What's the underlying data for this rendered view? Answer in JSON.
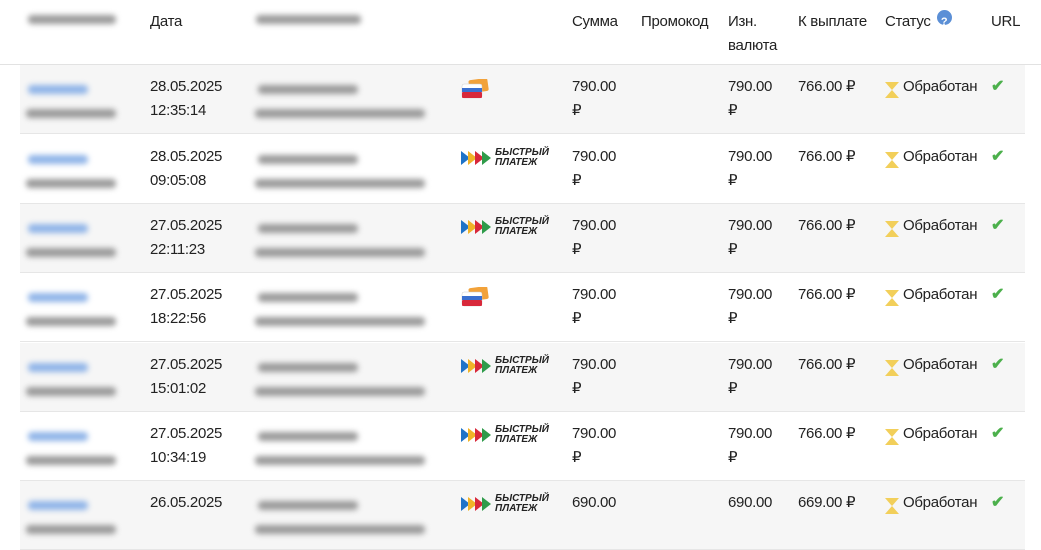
{
  "header": {
    "date": "Дата",
    "sum": "Сумма",
    "promo": "Промокод",
    "orig_currency": "Изн. валюта",
    "payout": "К выплате",
    "status": "Статус",
    "status_help": "?",
    "url": "URL"
  },
  "colors": {
    "row_alt": "#f6f6f6",
    "help": "#5b8fd6",
    "check": "#4cb04c",
    "hourglass": "#f2cf5a"
  },
  "rows": [
    {
      "date": "28.05.2025",
      "time": "12:35:14",
      "method": "card",
      "sum": "790.00",
      "sum_cur": "₽",
      "promo": "",
      "orig": "790.00",
      "orig_cur": "₽",
      "payout": "766.00 ₽",
      "status": "Обработан",
      "url": "check"
    },
    {
      "date": "28.05.2025",
      "time": "09:05:08",
      "method": "sbp",
      "sum": "790.00",
      "sum_cur": "₽",
      "promo": "",
      "orig": "790.00",
      "orig_cur": "₽",
      "payout": "766.00 ₽",
      "status": "Обработан",
      "url": "check"
    },
    {
      "date": "27.05.2025",
      "time": "22:11:23",
      "method": "sbp",
      "sum": "790.00",
      "sum_cur": "₽",
      "promo": "",
      "orig": "790.00",
      "orig_cur": "₽",
      "payout": "766.00 ₽",
      "status": "Обработан",
      "url": "check"
    },
    {
      "date": "27.05.2025",
      "time": "18:22:56",
      "method": "card",
      "sum": "790.00",
      "sum_cur": "₽",
      "promo": "",
      "orig": "790.00",
      "orig_cur": "₽",
      "payout": "766.00 ₽",
      "status": "Обработан",
      "url": "check"
    },
    {
      "date": "27.05.2025",
      "time": "15:01:02",
      "method": "sbp",
      "sum": "790.00",
      "sum_cur": "₽",
      "promo": "",
      "orig": "790.00",
      "orig_cur": "₽",
      "payout": "766.00 ₽",
      "status": "Обработан",
      "url": "check"
    },
    {
      "date": "27.05.2025",
      "time": "10:34:19",
      "method": "sbp",
      "sum": "790.00",
      "sum_cur": "₽",
      "promo": "",
      "orig": "790.00",
      "orig_cur": "₽",
      "payout": "766.00 ₽",
      "status": "Обработан",
      "url": "check"
    },
    {
      "date": "26.05.2025",
      "time": "",
      "method": "sbp",
      "sum": "690.00",
      "sum_cur": "",
      "promo": "",
      "orig": "690.00",
      "orig_cur": "",
      "payout": "669.00 ₽",
      "status": "Обработан",
      "url": "check"
    }
  ],
  "sbp_logo": {
    "line1": "БЫСТРЫЙ",
    "line2": "ПЛАТЕЖ"
  }
}
